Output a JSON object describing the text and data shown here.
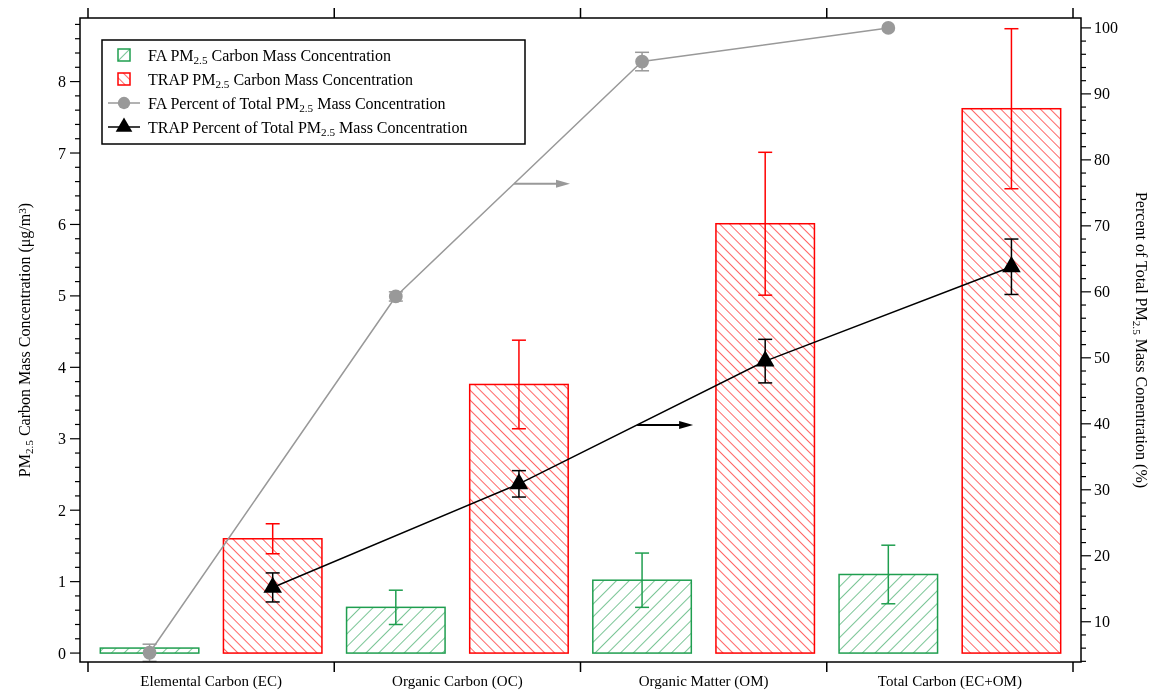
{
  "chart_data": {
    "type": "bar",
    "categories": [
      "Elemental Carbon (EC)",
      "Organic Carbon (OC)",
      "Organic Matter (OM)",
      "Total Carbon (EC+OM)"
    ],
    "ylabel": "PM$_{2.5}$ Carbon Mass Concentration (μg/m$^{3}$)",
    "y2label": "Percent of Total PM$_{2.5}$ Mass Conentration (%)",
    "ylim": [
      -0.125,
      8.89
    ],
    "y2lim": [
      3.9,
      101.5
    ],
    "yticks": [
      0,
      {
        "value": 0.2,
        "label": null
      },
      {
        "value": 0.4,
        "label": null
      },
      {
        "value": 0.6,
        "label": null
      },
      {
        "value": 0.8,
        "label": null
      },
      1,
      {
        "value": 1.2,
        "label": null
      },
      {
        "value": 1.4,
        "label": null
      },
      {
        "value": 1.6,
        "label": null
      },
      {
        "value": 1.8,
        "label": null
      },
      2,
      {
        "value": 2.2,
        "label": null
      },
      {
        "value": 2.4,
        "label": null
      },
      {
        "value": 2.6,
        "label": null
      },
      {
        "value": 2.8,
        "label": null
      },
      3,
      {
        "value": 3.2,
        "label": null
      },
      {
        "value": 3.4,
        "label": null
      },
      {
        "value": 3.6,
        "label": null
      },
      {
        "value": 3.8,
        "label": null
      },
      4,
      {
        "value": 4.2,
        "label": null
      },
      {
        "value": 4.4,
        "label": null
      },
      {
        "value": 4.6,
        "label": null
      },
      {
        "value": 4.8,
        "label": null
      },
      5,
      {
        "value": 5.2,
        "label": null
      },
      {
        "value": 5.4,
        "label": null
      },
      {
        "value": 5.6,
        "label": null
      },
      {
        "value": 5.8,
        "label": null
      },
      6,
      {
        "value": 6.2,
        "label": null
      },
      {
        "value": 6.4,
        "label": null
      },
      {
        "value": 6.6,
        "label": null
      },
      {
        "value": 6.8,
        "label": null
      },
      7,
      {
        "value": 7.2,
        "label": null
      },
      {
        "value": 7.4,
        "label": null
      },
      {
        "value": 7.6,
        "label": null
      },
      {
        "value": 7.8,
        "label": null
      },
      8,
      {
        "value": 8.2,
        "label": null
      },
      {
        "value": 8.4,
        "label": null
      },
      {
        "value": 8.6,
        "label": null
      },
      {
        "value": 8.8,
        "label": null
      }
    ],
    "y2ticks": [
      {
        "value": 4,
        "label": null
      },
      {
        "value": 6,
        "label": null
      },
      {
        "value": 8,
        "label": null
      },
      10,
      {
        "value": 12,
        "label": null
      },
      {
        "value": 14,
        "label": null
      },
      {
        "value": 16,
        "label": null
      },
      {
        "value": 18,
        "label": null
      },
      20,
      {
        "value": 22,
        "label": null
      },
      {
        "value": 24,
        "label": null
      },
      {
        "value": 26,
        "label": null
      },
      {
        "value": 28,
        "label": null
      },
      30,
      {
        "value": 32,
        "label": null
      },
      {
        "value": 34,
        "label": null
      },
      {
        "value": 36,
        "label": null
      },
      {
        "value": 38,
        "label": null
      },
      40,
      {
        "value": 42,
        "label": null
      },
      {
        "value": 44,
        "label": null
      },
      {
        "value": 46,
        "label": null
      },
      {
        "value": 48,
        "label": null
      },
      50,
      {
        "value": 52,
        "label": null
      },
      {
        "value": 54,
        "label": null
      },
      {
        "value": 56,
        "label": null
      },
      {
        "value": 58,
        "label": null
      },
      60,
      {
        "value": 62,
        "label": null
      },
      {
        "value": 64,
        "label": null
      },
      {
        "value": 66,
        "label": null
      },
      {
        "value": 68,
        "label": null
      },
      70,
      {
        "value": 72,
        "label": null
      },
      {
        "value": 74,
        "label": null
      },
      {
        "value": 76,
        "label": null
      },
      {
        "value": 78,
        "label": null
      },
      80,
      {
        "value": 82,
        "label": null
      },
      {
        "value": 84,
        "label": null
      },
      {
        "value": 86,
        "label": null
      },
      {
        "value": 88,
        "label": null
      },
      90,
      {
        "value": 92,
        "label": null
      },
      {
        "value": 94,
        "label": null
      },
      {
        "value": 96,
        "label": null
      },
      {
        "value": 98,
        "label": null
      },
      100
    ],
    "legend": "top left",
    "grid": false,
    "series": [
      {
        "name": "FA PM$_{2.5}$ Carbon Mass Concentration",
        "color": "#1f9e4f",
        "values": [
          0.07,
          0.64,
          1.02,
          1.1
        ],
        "errors": [
          null,
          0.24,
          0.38,
          0.41
        ]
      },
      {
        "name": "TRAP PM$_{2.5}$ Carbon Mass Concentration",
        "color": "#ff0000",
        "values": [
          1.6,
          3.76,
          6.01,
          7.62
        ],
        "errors": [
          0.21,
          0.62,
          1.0,
          1.12
        ]
      },
      {
        "name": "FA Percent of Total PM$_{2.5}$ Mass Concentration",
        "type": "line",
        "axis": "y2",
        "marker": "circle",
        "color": "#999999",
        "values": [
          5.3,
          59.3,
          94.9,
          100
        ],
        "errors": [
          1.3,
          0.7,
          1.4,
          null
        ]
      },
      {
        "name": "TRAP Percent of Total PM$_{2.5}$ Mass Concentration",
        "type": "line",
        "axis": "y2",
        "marker": "triangle",
        "color": "#000000",
        "values": [
          15.2,
          30.9,
          49.5,
          63.8
        ],
        "errors": [
          2.2,
          2.0,
          3.3,
          4.2
        ]
      }
    ]
  }
}
